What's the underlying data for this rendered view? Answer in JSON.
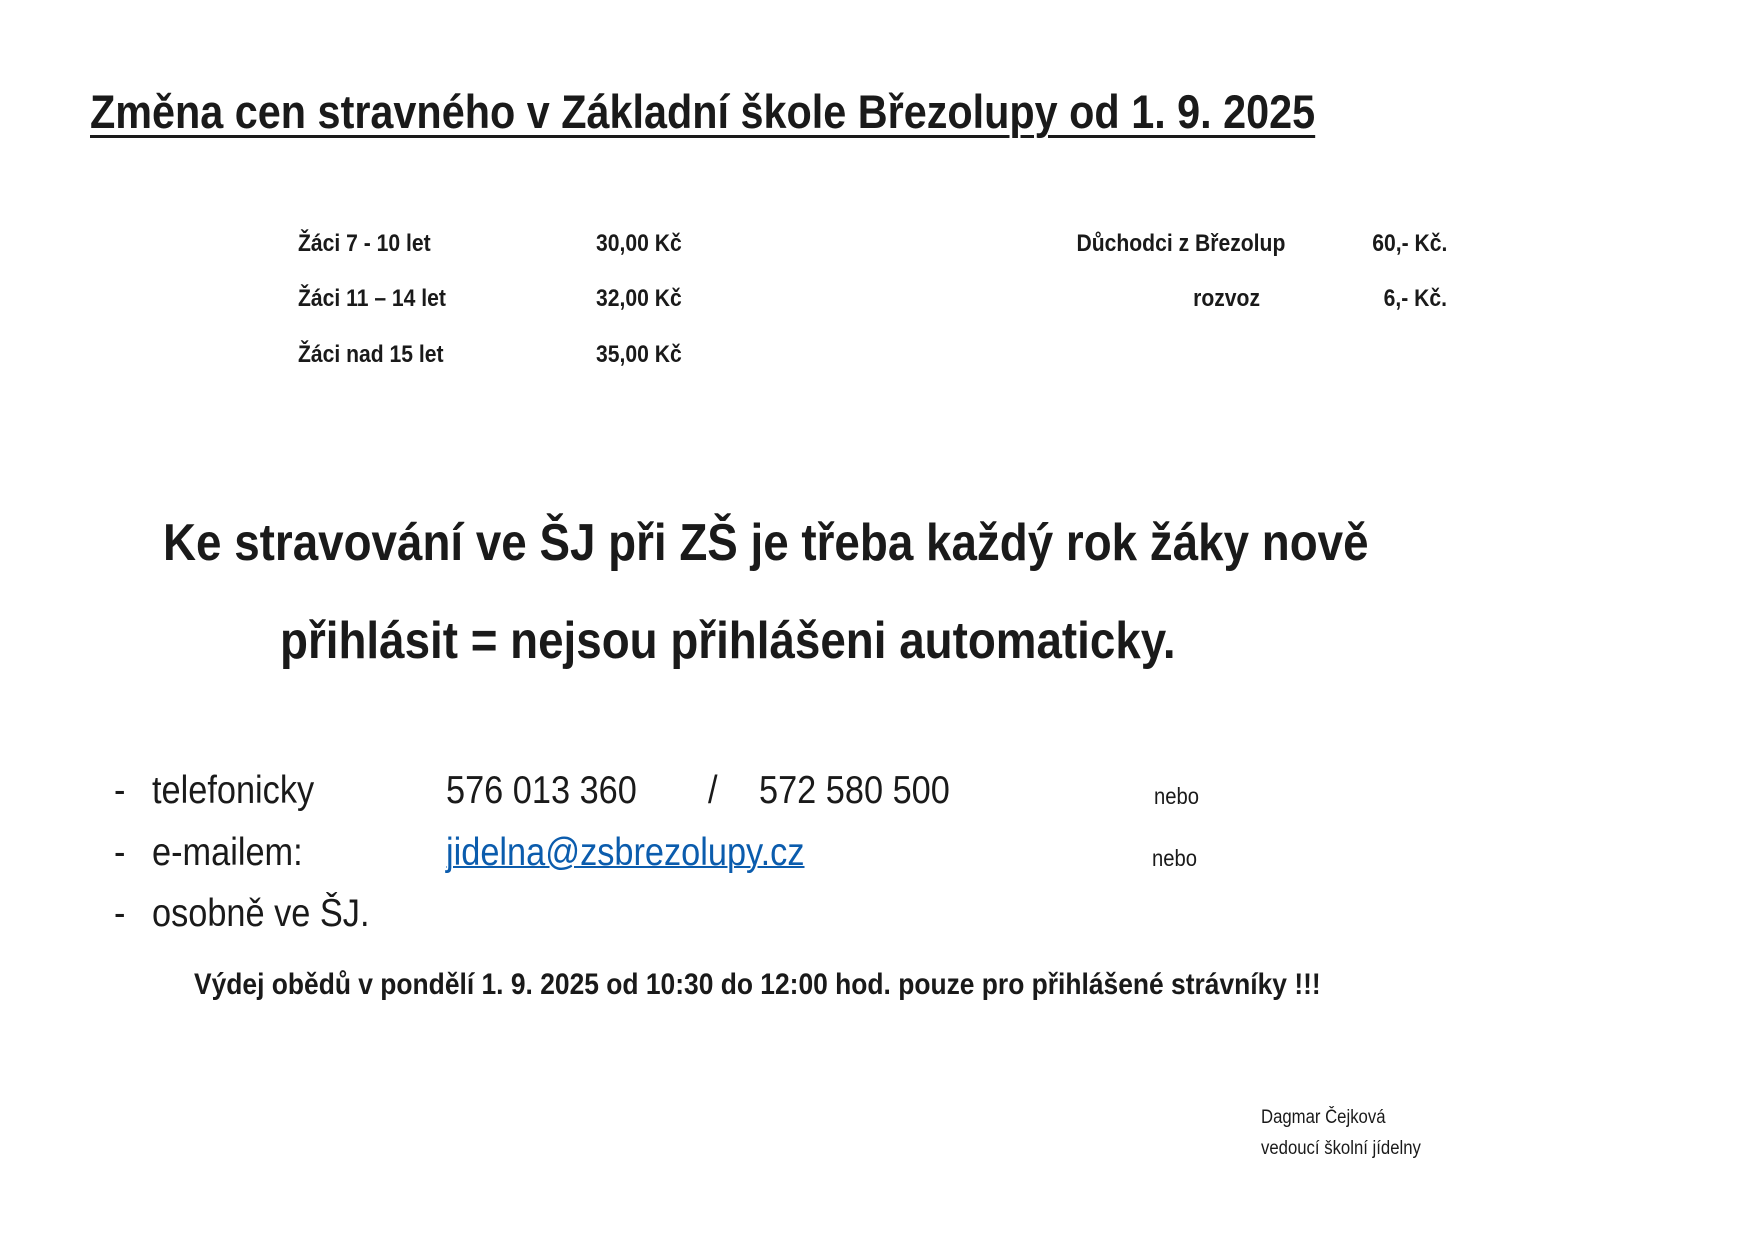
{
  "title": "Změna cen stravného v Základní škole Březolupy od 1. 9. 2025",
  "prices_students": [
    {
      "label": "Žáci 7 - 10 let",
      "price": "30,00  Kč"
    },
    {
      "label": "Žáci 11 – 14 let",
      "price": "32,00  Kč"
    },
    {
      "label": "Žáci nad 15 let",
      "price": "35,00  Kč"
    }
  ],
  "prices_other": [
    {
      "label": "Důchodci z Březolup",
      "price": "60,- Kč."
    },
    {
      "label": "rozvoz",
      "price": "6,- Kč."
    }
  ],
  "notice": {
    "line1": "Ke stravování ve ŠJ při ZŠ je třeba každý rok žáky nově",
    "line2": "přihlásit = nejsou přihlášeni automaticky."
  },
  "contacts": [
    {
      "bullet": "-",
      "label": "telefonicky",
      "value_a": "576 013 360",
      "separator": "/",
      "value_b": "572 580 500",
      "suffix": "nebo"
    },
    {
      "bullet": "-",
      "label": "e-mailem:",
      "email": "jidelna@zsbrezolupy.cz",
      "suffix": "nebo"
    },
    {
      "bullet": "-",
      "label": "osobně ve ŠJ."
    }
  ],
  "link_color": "#0b5cad",
  "serving": "Výdej obědů v pondělí 1. 9. 2025 od 10:30 do 12:00 hod. pouze pro přihlášené strávníky !!!",
  "signature": {
    "name": "Dagmar Čejková",
    "role": "vedoucí školní jídelny"
  }
}
